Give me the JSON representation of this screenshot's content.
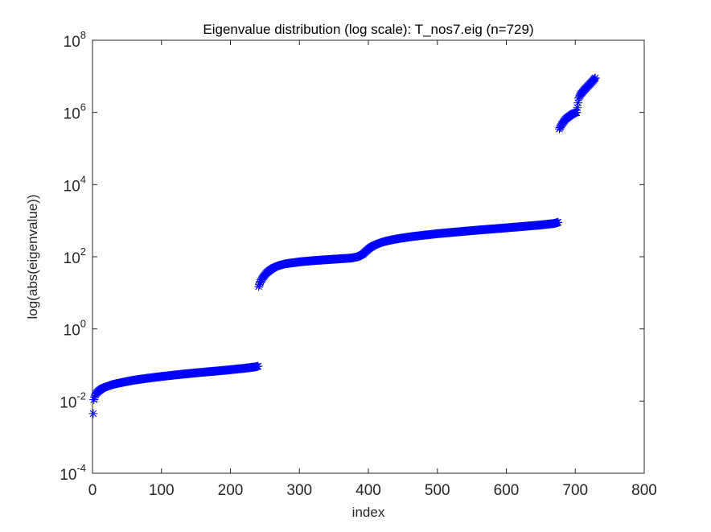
{
  "chart_data": {
    "type": "scatter",
    "title": "Eigenvalue distribution (log scale): T_nos7.eig (n=729)",
    "xlabel": "index",
    "ylabel": "log(abs(eigenvalue))",
    "xlim": [
      0,
      800
    ],
    "ylim": [
      0.0001,
      100000000
    ],
    "yscale": "log",
    "xticks": [
      "0",
      "100",
      "200",
      "300",
      "400",
      "500",
      "600",
      "700",
      "800"
    ],
    "yticks": [
      {
        "base": "10",
        "exp": "-4"
      },
      {
        "base": "10",
        "exp": "-2"
      },
      {
        "base": "10",
        "exp": "0"
      },
      {
        "base": "10",
        "exp": "2"
      },
      {
        "base": "10",
        "exp": "4"
      },
      {
        "base": "10",
        "exp": "6"
      },
      {
        "base": "10",
        "exp": "8"
      }
    ],
    "marker": "*",
    "marker_color": "#0000ff",
    "grid": false,
    "n": 729,
    "points": [
      [
        1,
        0.0045
      ],
      [
        2,
        0.011
      ],
      [
        3,
        0.013
      ],
      [
        4,
        0.0145
      ],
      [
        5,
        0.016
      ],
      [
        7,
        0.0175
      ],
      [
        9,
        0.019
      ],
      [
        12,
        0.021
      ],
      [
        15,
        0.023
      ],
      [
        20,
        0.025
      ],
      [
        25,
        0.027
      ],
      [
        30,
        0.029
      ],
      [
        40,
        0.032
      ],
      [
        50,
        0.035
      ],
      [
        60,
        0.038
      ],
      [
        80,
        0.043
      ],
      [
        100,
        0.048
      ],
      [
        120,
        0.053
      ],
      [
        140,
        0.058
      ],
      [
        160,
        0.063
      ],
      [
        180,
        0.068
      ],
      [
        200,
        0.074
      ],
      [
        220,
        0.081
      ],
      [
        235,
        0.088
      ],
      [
        240,
        0.092
      ],
      [
        241,
        15
      ],
      [
        243,
        19
      ],
      [
        245,
        23
      ],
      [
        248,
        28
      ],
      [
        252,
        35
      ],
      [
        257,
        42
      ],
      [
        263,
        50
      ],
      [
        270,
        57
      ],
      [
        280,
        64
      ],
      [
        300,
        72
      ],
      [
        320,
        78
      ],
      [
        340,
        83
      ],
      [
        360,
        88
      ],
      [
        375,
        92
      ],
      [
        385,
        100
      ],
      [
        392,
        118
      ],
      [
        397,
        145
      ],
      [
        402,
        175
      ],
      [
        408,
        205
      ],
      [
        415,
        235
      ],
      [
        425,
        270
      ],
      [
        440,
        310
      ],
      [
        460,
        355
      ],
      [
        480,
        395
      ],
      [
        500,
        435
      ],
      [
        530,
        490
      ],
      [
        560,
        550
      ],
      [
        590,
        610
      ],
      [
        620,
        680
      ],
      [
        650,
        760
      ],
      [
        670,
        840
      ],
      [
        675,
        900
      ],
      [
        677,
        350000
      ],
      [
        680,
        450000
      ],
      [
        683,
        550000
      ],
      [
        686,
        650000
      ],
      [
        690,
        750000
      ],
      [
        694,
        850000
      ],
      [
        698,
        950000
      ],
      [
        702,
        1000000
      ],
      [
        705,
        2500000
      ],
      [
        708,
        3200000
      ],
      [
        712,
        4000000
      ],
      [
        716,
        4800000
      ],
      [
        720,
        5800000
      ],
      [
        724,
        7000000
      ],
      [
        729,
        9000000
      ]
    ]
  }
}
